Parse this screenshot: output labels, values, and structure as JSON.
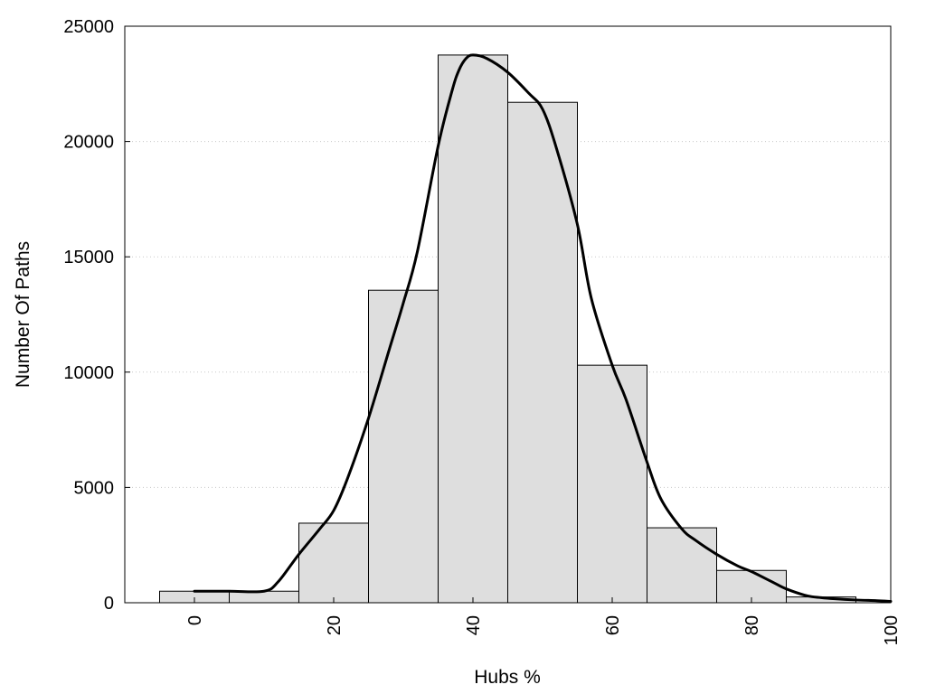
{
  "chart_data": {
    "type": "bar",
    "xlabel": "Hubs %",
    "ylabel": "Number Of Paths",
    "xlim": [
      -10,
      100
    ],
    "ylim": [
      0,
      25000
    ],
    "xticks": [
      0,
      20,
      40,
      60,
      80,
      100
    ],
    "yticks": [
      0,
      5000,
      10000,
      15000,
      20000,
      25000
    ],
    "grid": "horizontal",
    "bin_width": 10,
    "bins": [
      {
        "center": 0,
        "value": 500
      },
      {
        "center": 10,
        "value": 500
      },
      {
        "center": 20,
        "value": 3450
      },
      {
        "center": 30,
        "value": 13550
      },
      {
        "center": 40,
        "value": 23750
      },
      {
        "center": 50,
        "value": 21700
      },
      {
        "center": 60,
        "value": 10300
      },
      {
        "center": 70,
        "value": 3250
      },
      {
        "center": 80,
        "value": 1400
      },
      {
        "center": 90,
        "value": 250
      }
    ],
    "density_curve": {
      "x": [
        0,
        5,
        10,
        12,
        15,
        18,
        20,
        22,
        25,
        28,
        30,
        32,
        35,
        37,
        38,
        39,
        40,
        42,
        45,
        48,
        50,
        52,
        55,
        57,
        60,
        62,
        65,
        67,
        70,
        72,
        75,
        78,
        80,
        83,
        85,
        88,
        90,
        92,
        95,
        98,
        100
      ],
      "y": [
        500,
        500,
        500,
        900,
        2100,
        3200,
        4000,
        5400,
        8000,
        11000,
        13000,
        15200,
        19800,
        22200,
        23100,
        23600,
        23750,
        23600,
        23000,
        22100,
        21400,
        19700,
        16400,
        13200,
        10300,
        8800,
        6100,
        4500,
        3200,
        2700,
        2100,
        1600,
        1350,
        900,
        600,
        300,
        220,
        170,
        120,
        90,
        60
      ]
    }
  }
}
